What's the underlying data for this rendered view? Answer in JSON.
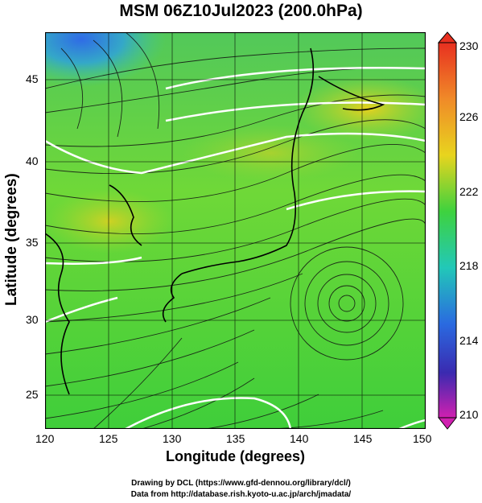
{
  "title": "MSM 06Z10Jul2023 (200.0hPa)",
  "axes": {
    "xlabel": "Longitude (degrees)",
    "ylabel": "Latitude  (degrees)",
    "xticks": [
      "120",
      "125",
      "130",
      "135",
      "140",
      "145",
      "150"
    ],
    "yticks": [
      "25",
      "30",
      "35",
      "40",
      "45"
    ]
  },
  "colorbar": {
    "ticks": [
      "230",
      "226",
      "222",
      "218",
      "214",
      "210"
    ]
  },
  "footer": {
    "line1": "Drawing by DCL (https://www.gfd-dennou.org/library/dcl/)",
    "line2": "Data from http://database.rish.kyoto-u.ac.jp/arch/jmadata/"
  },
  "map_data": {
    "type": "filled contour with streamlines",
    "xlim": [
      120,
      150
    ],
    "ylim": [
      23,
      48
    ],
    "colorbar_range": [
      210,
      230
    ],
    "colors": {
      "background_main": "#3ed23e",
      "high_value": "#e8d020",
      "low_value": "#2a6ae0",
      "contour_line": "#ffffff",
      "coastline": "#000000"
    }
  }
}
